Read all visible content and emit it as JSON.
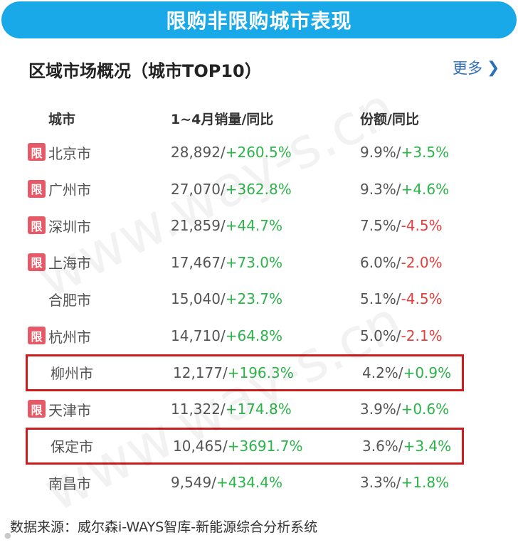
{
  "banner": {
    "title": "限购非限购城市表现"
  },
  "section": {
    "title": "区域市场概况（城市TOP10）",
    "more_label": "更多",
    "more_icon": "chevron-right-icon"
  },
  "table": {
    "headers": {
      "city": "城市",
      "volume": "1~4月销量/同比",
      "share": "份额/同比"
    },
    "restricted_badge": "限",
    "rows": [
      {
        "restricted": true,
        "highlighted": false,
        "city": "北京市",
        "volume": "28,892/",
        "volume_yoy": "+260.5%",
        "share": "9.9%/",
        "share_yoy": "+3.5%"
      },
      {
        "restricted": true,
        "highlighted": false,
        "city": "广州市",
        "volume": "27,070/",
        "volume_yoy": "+362.8%",
        "share": "9.3%/",
        "share_yoy": "+4.6%"
      },
      {
        "restricted": true,
        "highlighted": false,
        "city": "深圳市",
        "volume": "21,859/",
        "volume_yoy": "+44.7%",
        "share": "7.5%/",
        "share_yoy": "-4.5%"
      },
      {
        "restricted": true,
        "highlighted": false,
        "city": "上海市",
        "volume": "17,467/",
        "volume_yoy": "+73.0%",
        "share": "6.0%/",
        "share_yoy": "-2.0%"
      },
      {
        "restricted": false,
        "highlighted": false,
        "city": "合肥市",
        "volume": "15,040/",
        "volume_yoy": "+23.7%",
        "share": "5.1%/",
        "share_yoy": "-4.5%"
      },
      {
        "restricted": true,
        "highlighted": false,
        "city": "杭州市",
        "volume": "14,710/",
        "volume_yoy": "+64.8%",
        "share": "5.0%/",
        "share_yoy": "-2.1%"
      },
      {
        "restricted": false,
        "highlighted": true,
        "city": "柳州市",
        "volume": "12,177/",
        "volume_yoy": "+196.3%",
        "share": "4.2%/",
        "share_yoy": "+0.9%"
      },
      {
        "restricted": true,
        "highlighted": false,
        "city": "天津市",
        "volume": "11,322/",
        "volume_yoy": "+174.8%",
        "share": "3.9%/",
        "share_yoy": "+0.6%"
      },
      {
        "restricted": false,
        "highlighted": true,
        "city": "保定市",
        "volume": "10,465/",
        "volume_yoy": "+3691.7%",
        "share": "3.6%/",
        "share_yoy": "+3.4%"
      },
      {
        "restricted": false,
        "highlighted": false,
        "city": "南昌市",
        "volume": "9,549/",
        "volume_yoy": "+434.4%",
        "share": "3.3%/",
        "share_yoy": "+1.8%"
      }
    ]
  },
  "watermark": {
    "text": "www.way-s.cn"
  },
  "footer": {
    "source": "数据来源：威尔森i-WAYS智库-新能源综合分析系统"
  },
  "colors": {
    "banner": "#19a9e8",
    "positive": "#2cb34a",
    "negative": "#e0413f",
    "badge": "#e65a67",
    "highlight_border": "#cc1c1c",
    "link": "#2d6fb8"
  }
}
